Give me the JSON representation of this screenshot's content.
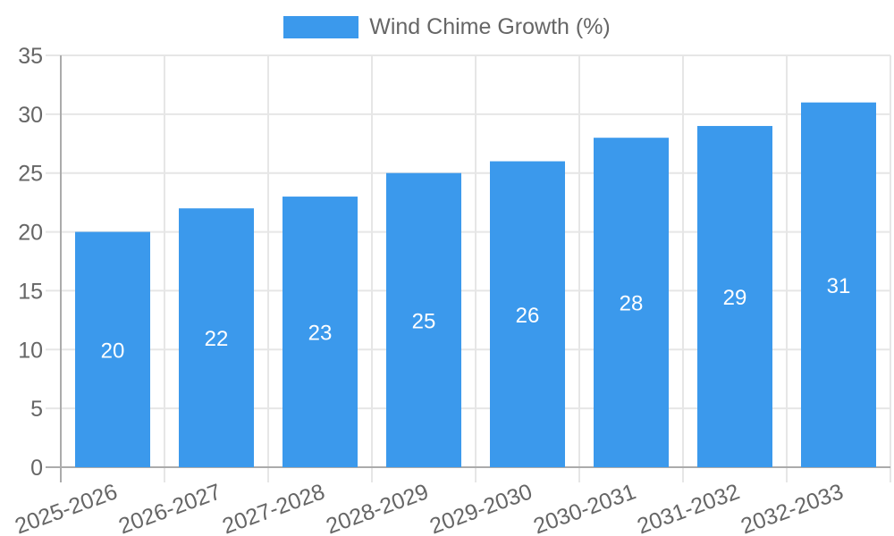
{
  "chart_data": {
    "type": "bar",
    "title": "",
    "legend": {
      "position": "top",
      "label": "Wind Chime Growth (%)"
    },
    "categories": [
      "2025-2026",
      "2026-2027",
      "2027-2028",
      "2028-2029",
      "2029-2030",
      "2030-2031",
      "2031-2032",
      "2032-2033"
    ],
    "series": [
      {
        "name": "Wind Chime Growth (%)",
        "values": [
          20,
          22,
          23,
          25,
          26,
          28,
          29,
          31
        ],
        "color": "#3b99ec",
        "value_label_color": "#ffffff"
      }
    ],
    "xlabel": "",
    "ylabel": "",
    "ylim": [
      0,
      35
    ],
    "yticks": [
      0,
      5,
      10,
      15,
      20,
      25,
      30,
      35
    ],
    "grid": true,
    "bar_value_labels_shown": true,
    "x_label_rotation_deg": -20,
    "styles": {
      "background": "#ffffff",
      "grid_color": "#e6e6e6",
      "axis_border_color": "#ababab",
      "tick_label_color": "#666666",
      "legend_text_color": "#666666"
    }
  }
}
